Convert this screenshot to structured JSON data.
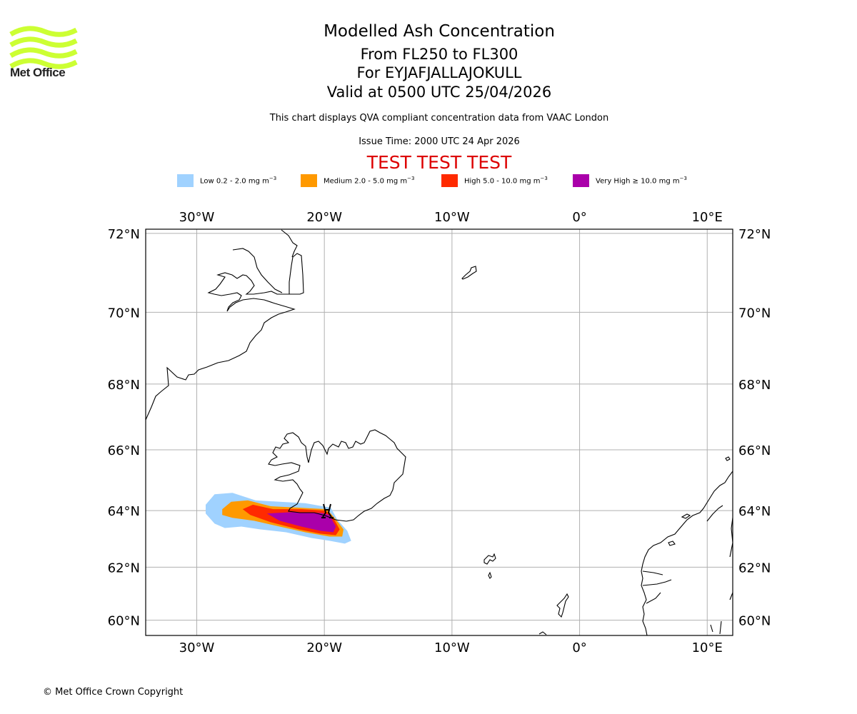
{
  "logo": {
    "name": "Met Office",
    "icon": "met-office-waves-logo",
    "color": "#ccff33"
  },
  "title": {
    "line1": "Modelled Ash Concentration",
    "line2": "From FL250 to FL300",
    "line3": "For EYJAFJALLAJOKULL",
    "line4": "Valid at 0500 UTC 25/04/2026"
  },
  "subtitle": "This chart displays QVA compliant concentration data from VAAC London",
  "issue_time": "Issue Time: 2000 UTC 24 Apr 2026",
  "test_banner": {
    "text": "TEST TEST TEST",
    "color": "#dd0000"
  },
  "legend": [
    {
      "label": "Low 0.2 - 2.0 mg m",
      "unit_exp": "−3",
      "color": "#a0d2ff"
    },
    {
      "label": "Medium 2.0 - 5.0 mg m",
      "unit_exp": "−3",
      "color": "#ff9900"
    },
    {
      "label": "High 5.0 - 10.0 mg m",
      "unit_exp": "−3",
      "color": "#ff2a00"
    },
    {
      "label": "Very High ≥ 10.0 mg m",
      "unit_exp": "−3",
      "color": "#aa00aa"
    }
  ],
  "chart_data": {
    "type": "heatmap",
    "title": "Modelled Ash Concentration",
    "projection": "Mercator",
    "extent": {
      "lon": [
        -34,
        12
      ],
      "lat": [
        59.4,
        72.1
      ]
    },
    "grid": true,
    "lon_ticks": [
      -30,
      -20,
      -10,
      0,
      10
    ],
    "lon_tick_labels": [
      "30°W",
      "20°W",
      "10°W",
      "0°",
      "10°E"
    ],
    "lat_ticks": [
      72,
      70,
      68,
      66,
      64,
      62,
      60
    ],
    "lat_tick_labels": [
      "72°N",
      "70°N",
      "68°N",
      "66°N",
      "64°N",
      "62°N",
      "60°N"
    ],
    "volcano": {
      "name": "EYJAFJALLAJOKULL",
      "lon": -19.6,
      "lat": 63.6
    },
    "ash_levels": [
      {
        "name": "Low",
        "range_mg_m3": [
          0.2,
          2.0
        ],
        "color": "#a0d2ff",
        "outline": [
          [
            -29.3,
            64.2
          ],
          [
            -28.6,
            64.55
          ],
          [
            -27.2,
            64.6
          ],
          [
            -25.4,
            64.35
          ],
          [
            -23.5,
            64.3
          ],
          [
            -21.5,
            64.25
          ],
          [
            -19.5,
            64.1
          ],
          [
            -19.0,
            63.7
          ],
          [
            -18.2,
            63.3
          ],
          [
            -17.9,
            62.95
          ],
          [
            -18.4,
            62.85
          ],
          [
            -19.6,
            62.95
          ],
          [
            -21.0,
            63.05
          ],
          [
            -23.0,
            63.25
          ],
          [
            -25.0,
            63.35
          ],
          [
            -26.5,
            63.45
          ],
          [
            -27.8,
            63.4
          ],
          [
            -28.6,
            63.55
          ],
          [
            -29.3,
            63.9
          ]
        ]
      },
      {
        "name": "Medium",
        "range_mg_m3": [
          2.0,
          5.0
        ],
        "color": "#ff9900",
        "outline": [
          [
            -28.0,
            64.05
          ],
          [
            -27.3,
            64.3
          ],
          [
            -26.0,
            64.35
          ],
          [
            -24.2,
            64.15
          ],
          [
            -22.0,
            64.1
          ],
          [
            -19.8,
            64.05
          ],
          [
            -19.1,
            63.7
          ],
          [
            -18.5,
            63.35
          ],
          [
            -18.6,
            63.1
          ],
          [
            -19.6,
            63.1
          ],
          [
            -21.5,
            63.25
          ],
          [
            -23.5,
            63.45
          ],
          [
            -25.5,
            63.65
          ],
          [
            -27.2,
            63.75
          ],
          [
            -28.0,
            63.85
          ]
        ]
      },
      {
        "name": "High",
        "range_mg_m3": [
          5.0,
          10.0
        ],
        "color": "#ff2a00",
        "outline": [
          [
            -26.4,
            64.05
          ],
          [
            -25.6,
            64.2
          ],
          [
            -24.0,
            64.05
          ],
          [
            -21.8,
            64.05
          ],
          [
            -19.9,
            64.0
          ],
          [
            -19.3,
            63.75
          ],
          [
            -18.8,
            63.35
          ],
          [
            -19.1,
            63.15
          ],
          [
            -20.3,
            63.2
          ],
          [
            -22.0,
            63.35
          ],
          [
            -24.2,
            63.6
          ],
          [
            -25.8,
            63.85
          ]
        ]
      },
      {
        "name": "Very High",
        "range_mg_m3": [
          10.0,
          null
        ],
        "color": "#aa00aa",
        "outline": [
          [
            -24.5,
            63.9
          ],
          [
            -22.5,
            63.95
          ],
          [
            -20.2,
            63.92
          ],
          [
            -19.6,
            63.85
          ],
          [
            -19.1,
            63.45
          ],
          [
            -19.3,
            63.25
          ],
          [
            -20.3,
            63.3
          ],
          [
            -21.8,
            63.45
          ],
          [
            -23.5,
            63.65
          ]
        ]
      }
    ]
  },
  "copyright": "© Met Office Crown Copyright"
}
